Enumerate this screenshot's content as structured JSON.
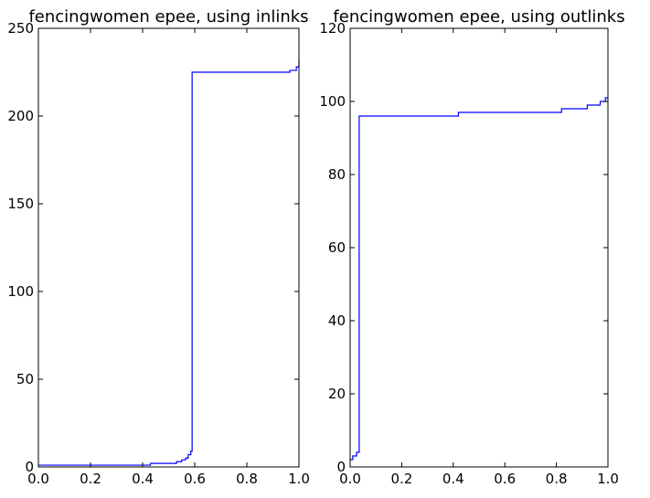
{
  "chart_data": [
    {
      "type": "line",
      "title": "fencingwomen epee, using inlinks",
      "xlabel": "",
      "ylabel": "",
      "xlim": [
        0,
        1
      ],
      "ylim": [
        0,
        250
      ],
      "grid": false,
      "x_ticks": [
        "0.0",
        "0.2",
        "0.4",
        "0.6",
        "0.8",
        "1.0"
      ],
      "y_ticks": [
        "0",
        "50",
        "100",
        "150",
        "200",
        "250"
      ],
      "series": [
        {
          "color": "#0000ff",
          "step": true,
          "x": [
            0.0,
            0.4,
            0.43,
            0.53,
            0.55,
            0.565,
            0.575,
            0.585,
            0.59,
            0.965,
            0.99,
            1.0
          ],
          "y": [
            1,
            1,
            2,
            3,
            4,
            5,
            7,
            9,
            225,
            226,
            228,
            232
          ]
        }
      ]
    },
    {
      "type": "line",
      "title": "fencingwomen epee, using outlinks",
      "xlabel": "",
      "ylabel": "",
      "xlim": [
        0,
        1
      ],
      "ylim": [
        0,
        120
      ],
      "grid": false,
      "x_ticks": [
        "0.0",
        "0.2",
        "0.4",
        "0.6",
        "0.8",
        "1.0"
      ],
      "y_ticks": [
        "0",
        "20",
        "40",
        "60",
        "80",
        "100",
        "120"
      ],
      "series": [
        {
          "color": "#0000ff",
          "step": true,
          "x": [
            0.0,
            0.01,
            0.025,
            0.035,
            0.42,
            0.82,
            0.92,
            0.97,
            0.99,
            1.0
          ],
          "y": [
            2,
            3,
            4,
            96,
            97,
            98,
            99,
            100,
            101,
            101
          ]
        }
      ]
    }
  ]
}
